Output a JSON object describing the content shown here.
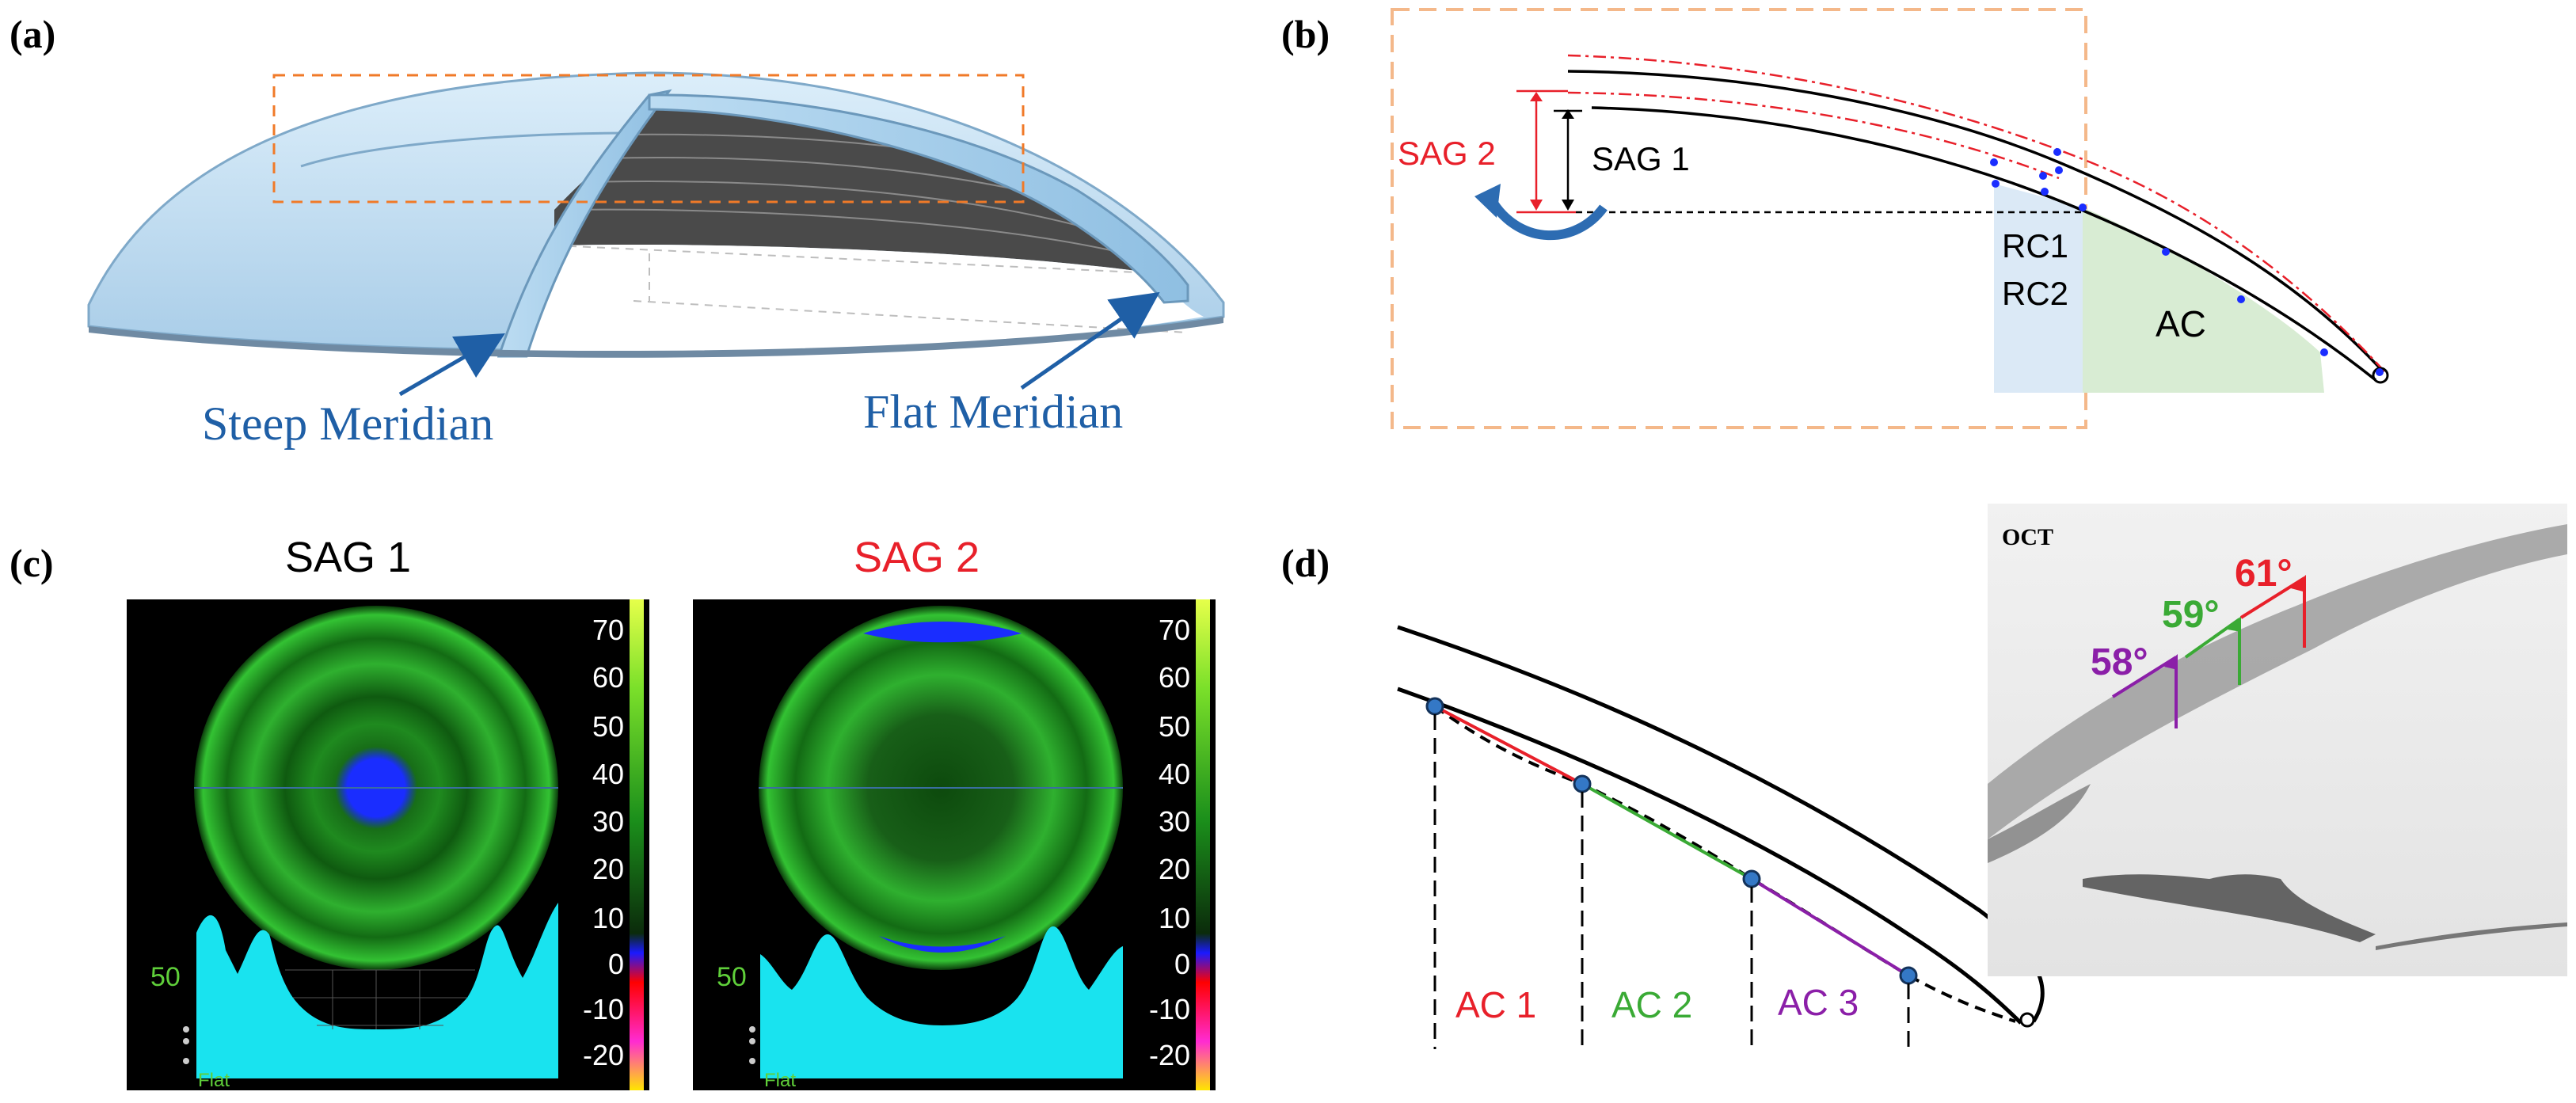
{
  "panels": {
    "a": {
      "label": "(a)",
      "steep_label": "Steep Meridian",
      "flat_label": "Flat Meridian"
    },
    "b": {
      "label": "(b)",
      "sag1": "SAG 1",
      "sag2": "SAG 2",
      "rc1": "RC1",
      "rc2": "RC2",
      "ac": "AC"
    },
    "c": {
      "label": "(c)",
      "left_title": "SAG 1",
      "right_title": "SAG 2",
      "scale_ticks": [
        "70",
        "60",
        "50",
        "40",
        "30",
        "20",
        "10",
        "0",
        "-10",
        "-20"
      ],
      "side_value": "50",
      "flat_label": "Flat"
    },
    "d": {
      "label": "(d)",
      "ac1": "AC 1",
      "ac2": "AC 2",
      "ac3": "AC 3",
      "oct_label": "OCT",
      "angles": [
        "58°",
        "59°",
        "61°"
      ]
    }
  },
  "colors": {
    "blue_text": "#1f5fa6",
    "red": "#e8202a",
    "green_seg": "#3aaa35",
    "purple_seg": "#8b1fa8",
    "orange_dash": "#f07a28",
    "cyan_hist": "#19e3ef",
    "map_green": "#22b022",
    "rc_fill": "#dbe9f6",
    "ac_fill": "#d8ecd3"
  }
}
